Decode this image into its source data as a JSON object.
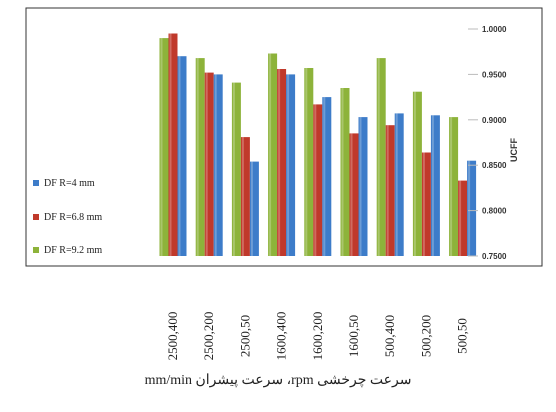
{
  "chart_data": {
    "type": "bar",
    "categories": [
      "2500,400",
      "2500,200",
      "2500,50",
      "1600,400",
      "1600,200",
      "1600,50",
      "500,400",
      "500,200",
      "500,50"
    ],
    "series": [
      {
        "name": "DF R=9.2 mm",
        "color": "#8db33a",
        "values": [
          0.99,
          0.968,
          0.941,
          0.973,
          0.957,
          0.935,
          0.968,
          0.931,
          0.903
        ]
      },
      {
        "name": "DF R=6.8 mm",
        "color": "#c0392b",
        "values": [
          0.995,
          0.952,
          0.881,
          0.956,
          0.917,
          0.885,
          0.894,
          0.864,
          0.833
        ]
      },
      {
        "name": "DF R=4 mm",
        "color": "#3d7cc9",
        "values": [
          0.97,
          0.95,
          0.854,
          0.95,
          0.925,
          0.903,
          0.907,
          0.905,
          0.855
        ]
      }
    ],
    "ylabel": "UCFF",
    "ylim": [
      0.75,
      1.0
    ],
    "yticks": [
      "0.7500",
      "0.8000",
      "0.8500",
      "0.9000",
      "0.9500",
      "1.0000"
    ],
    "xlabel": "سرعت چرخشی rpm، سرعت پیشران mm/min",
    "legend_position": "left",
    "legend_entries": [
      "DF R=4 mm",
      "DF R=6.8 mm",
      "DF R=9.2 mm"
    ],
    "grid": false
  }
}
